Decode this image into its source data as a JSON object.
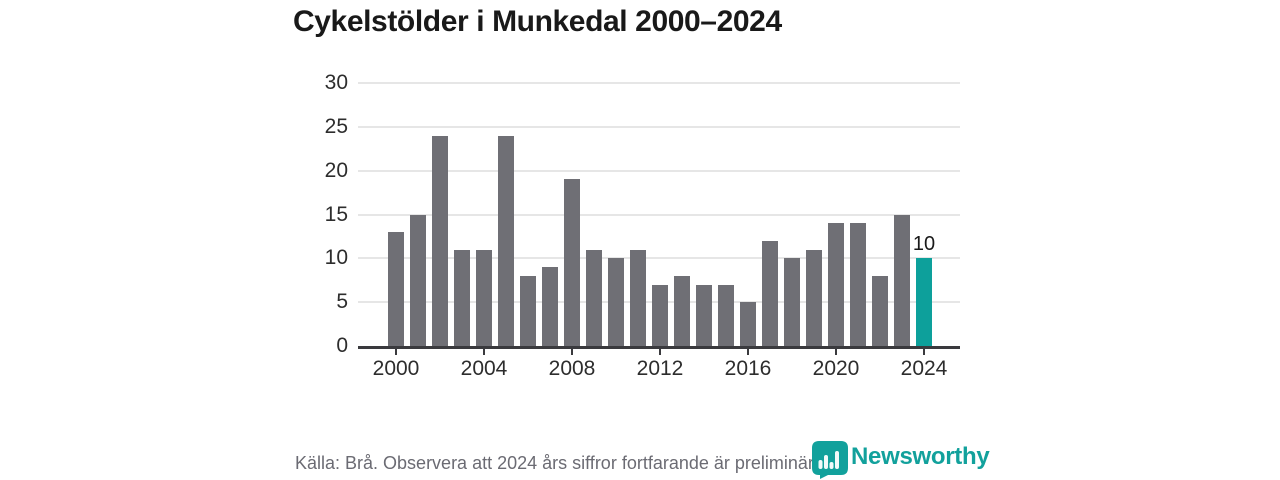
{
  "title": "Cykelstölder i Munkedal 2000–2024",
  "chart_data": {
    "type": "bar",
    "categories": [
      2000,
      2001,
      2002,
      2003,
      2004,
      2005,
      2006,
      2007,
      2008,
      2009,
      2010,
      2011,
      2012,
      2013,
      2014,
      2015,
      2016,
      2017,
      2018,
      2019,
      2020,
      2021,
      2022,
      2023,
      2024
    ],
    "values": [
      13,
      15,
      24,
      11,
      11,
      24,
      8,
      9,
      19,
      11,
      10,
      11,
      7,
      8,
      7,
      7,
      5,
      12,
      10,
      11,
      14,
      14,
      8,
      15,
      10
    ],
    "title": "Cykelstölder i Munkedal 2000–2024",
    "xlabel": "",
    "ylabel": "",
    "ylim": [
      0,
      30
    ],
    "yticks": [
      0,
      5,
      10,
      15,
      20,
      25,
      30
    ],
    "xticks": [
      2000,
      2004,
      2008,
      2012,
      2016,
      2020,
      2024
    ],
    "grid": true,
    "legend": "none",
    "bar_color": "#6f6f75",
    "highlight_index": 24,
    "highlight_color": "#0da09b",
    "highlight_label": "10"
  },
  "footer": {
    "source_note": "Källa: Brå. Observera att 2024 års siffror fortfarande är preliminära."
  },
  "branding": {
    "logo_text": "Newsworthy",
    "logo_color": "#12a19c",
    "logo_icon": "bar-chart-bubble-icon"
  }
}
